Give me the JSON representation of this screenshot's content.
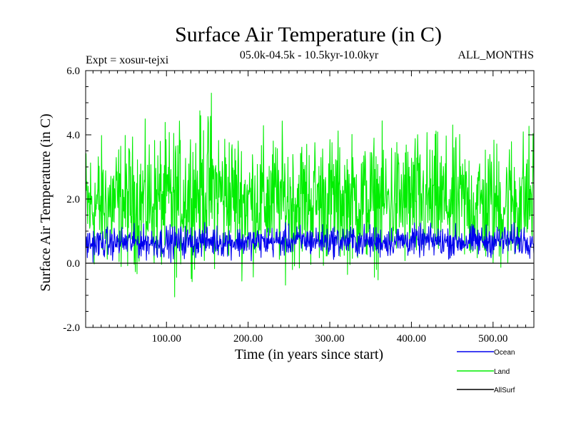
{
  "chart_data": {
    "type": "line",
    "title": "Surface Air Temperature (in C)",
    "subtitle_left": "Expt = xosur-tejxi",
    "subtitle_center": "05.0k-04.5k - 10.5kyr-10.0kyr",
    "subtitle_right": "ALL_MONTHS",
    "xlabel": "Time (in years since start)",
    "ylabel": "Surface Air Temperature (in C)",
    "xlim": [
      1,
      550
    ],
    "ylim": [
      -2.0,
      6.0
    ],
    "xticks": [
      100,
      200,
      300,
      400,
      500
    ],
    "xtick_labels": [
      "100.00",
      "200.00",
      "300.00",
      "400.00",
      "500.00"
    ],
    "yticks": [
      -2.0,
      0.0,
      2.0,
      4.0,
      6.0
    ],
    "ytick_labels": [
      "-2.0",
      "0.0",
      "2.0",
      "4.0",
      "6.0"
    ],
    "reference_line": 0.0,
    "legend_position": "bottom-right",
    "series": [
      {
        "name": "Land",
        "color": "#00ee00",
        "band": {
          "x": [
            0,
            50,
            100,
            150,
            200,
            250,
            300,
            350,
            400,
            450,
            500,
            550
          ],
          "low": [
            -0.8,
            -0.6,
            -0.7,
            -0.5,
            -0.6,
            -0.7,
            -0.5,
            -0.6,
            -0.7,
            -0.6,
            -0.8,
            -0.6
          ],
          "high": [
            4.3,
            4.4,
            4.6,
            5.2,
            4.5,
            4.6,
            4.5,
            4.4,
            4.6,
            4.4,
            4.4,
            4.8
          ]
        },
        "annotated_extremes": {
          "max": 5.3,
          "max_at_year": 155,
          "min": -1.05,
          "min_at_year": 110
        }
      },
      {
        "name": "Ocean",
        "color": "#0000ee",
        "band": {
          "x": [
            0,
            50,
            100,
            150,
            200,
            250,
            300,
            350,
            400,
            450,
            500,
            550
          ],
          "low": [
            0.0,
            0.05,
            0.0,
            0.1,
            0.05,
            0.1,
            0.1,
            0.05,
            0.1,
            0.05,
            0.1,
            0.1
          ],
          "high": [
            1.2,
            1.25,
            1.3,
            1.3,
            1.25,
            1.3,
            1.3,
            1.3,
            1.3,
            1.3,
            1.3,
            1.35
          ]
        }
      },
      {
        "name": "AllSurf",
        "color": "#000000",
        "band": {
          "x": [
            0,
            550
          ],
          "low": [
            0.0,
            0.0
          ],
          "high": [
            0.0,
            0.0
          ]
        }
      }
    ],
    "legend": [
      "Ocean",
      "Land",
      "AllSurf"
    ]
  }
}
